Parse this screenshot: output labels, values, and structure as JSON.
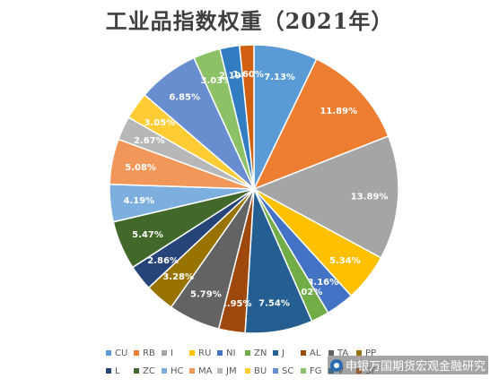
{
  "chart_data": {
    "type": "pie",
    "title": "工业品指数权重（2021年）",
    "slices": [
      {
        "name": "CU",
        "value": 7.13,
        "label": "7.13%",
        "color": "#5b9bd5"
      },
      {
        "name": "RB",
        "value": 11.89,
        "label": "11.89%",
        "color": "#ed7d31"
      },
      {
        "name": "I",
        "value": 13.89,
        "label": "13.89%",
        "color": "#a5a5a5"
      },
      {
        "name": "RU",
        "value": 5.34,
        "label": "5.34%",
        "color": "#ffc000"
      },
      {
        "name": "NI",
        "value": 3.16,
        "label": "3.16%",
        "color": "#4472c4"
      },
      {
        "name": "ZN",
        "value": 2.02,
        "label": "2.02%",
        "color": "#70ad47"
      },
      {
        "name": "J",
        "value": 7.54,
        "label": "7.54%",
        "color": "#255e91"
      },
      {
        "name": "AL",
        "value": 2.95,
        "label": "2.95%",
        "color": "#9e480e"
      },
      {
        "name": "TA",
        "value": 5.79,
        "label": "5.79%",
        "color": "#636363"
      },
      {
        "name": "PP",
        "value": 3.28,
        "label": "3.28%",
        "color": "#997300"
      },
      {
        "name": "L",
        "value": 2.86,
        "label": "2.86%",
        "color": "#264478"
      },
      {
        "name": "ZC",
        "value": 5.47,
        "label": "5.47%",
        "color": "#43682b"
      },
      {
        "name": "HC",
        "value": 4.19,
        "label": "4.19%",
        "color": "#7cafdd"
      },
      {
        "name": "MA",
        "value": 5.08,
        "label": "5.08%",
        "color": "#f1975a"
      },
      {
        "name": "JM",
        "value": 2.67,
        "label": "2.67%",
        "color": "#b7b7b7"
      },
      {
        "name": "BU",
        "value": 3.05,
        "label": "3.05%",
        "color": "#ffcd33"
      },
      {
        "name": "SC",
        "value": 6.85,
        "label": "6.85%",
        "color": "#698ed0"
      },
      {
        "name": "FG",
        "value": 3.03,
        "label": "3.03%",
        "color": "#8cc168"
      },
      {
        "name": "V",
        "value": 2.19,
        "label": "2.19%",
        "color": "#327dc2"
      },
      {
        "name": "SF",
        "value": 1.6,
        "label": "1.60%",
        "color": "#d26012"
      }
    ],
    "legend_position": "bottom"
  },
  "watermark": {
    "text": "申银万国期货宏观金融研究",
    "icon": "wechat-logo-icon"
  }
}
